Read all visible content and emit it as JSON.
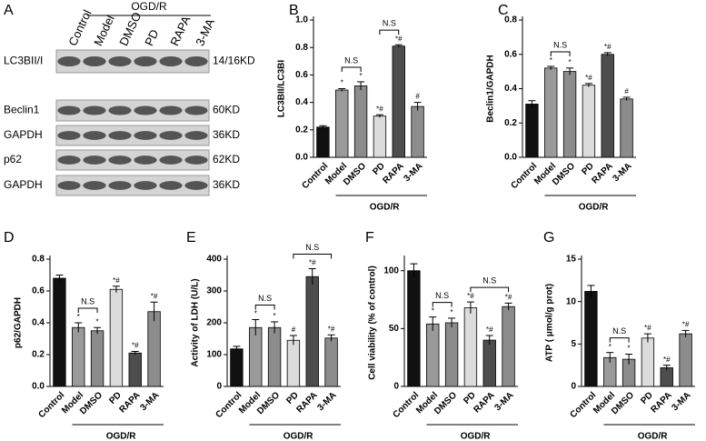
{
  "blot": {
    "panel": "A",
    "group": "OGD/R",
    "lanes": [
      "Control",
      "Model",
      "DMSO",
      "PD",
      "RAPA",
      "3-MA"
    ],
    "rows": [
      {
        "label": "LC3BII/I",
        "size": "14/16KD"
      },
      {
        "label": "Beclin1",
        "size": "60KD"
      },
      {
        "label": "GAPDH",
        "size": "36KD"
      },
      {
        "label": "p62",
        "size": "62KD"
      },
      {
        "label": "GAPDH",
        "size": "36KD"
      }
    ]
  },
  "chart_data": [
    {
      "type": "bar",
      "panel": "B",
      "y_label": "LC3BII/LC3BI",
      "group": "OGD/R",
      "categories": [
        "Control",
        "Model",
        "DMSO",
        "PD",
        "RAPA",
        "3-MA"
      ],
      "values": [
        0.22,
        0.49,
        0.52,
        0.3,
        0.81,
        0.37
      ],
      "errors": [
        0.01,
        0.01,
        0.03,
        0.01,
        0.01,
        0.03
      ],
      "markers": [
        null,
        "*",
        "*",
        "*#",
        "*#",
        "#"
      ],
      "colors": [
        "#111111",
        "#9a9a9a",
        "#8c8c8c",
        "#dcdcdc",
        "#4d4d4d",
        "#8c8c8c"
      ],
      "brackets": [
        {
          "between": [
            "Model",
            "DMSO"
          ],
          "label": "N.S"
        },
        {
          "between": [
            "PD",
            "RAPA"
          ],
          "label": "N.S"
        }
      ],
      "ylim": [
        0,
        1.0
      ],
      "yticks": [
        {
          "value": 0,
          "label": "0.0"
        },
        0.2,
        0.4,
        0.6,
        0.8,
        {
          "value": 1.0,
          "label": "1.0"
        }
      ]
    },
    {
      "type": "bar",
      "panel": "C",
      "y_label": "Beclin1/GAPDH",
      "group": "OGD/R",
      "categories": [
        "Control",
        "Model",
        "DMSO",
        "PD",
        "RAPA",
        "3-MA"
      ],
      "values": [
        0.31,
        0.52,
        0.5,
        0.42,
        0.6,
        0.34
      ],
      "errors": [
        0.02,
        0.01,
        0.02,
        0.01,
        0.01,
        0.01
      ],
      "markers": [
        null,
        "*",
        "*",
        "*#",
        "*#",
        "#"
      ],
      "colors": [
        "#111111",
        "#9a9a9a",
        "#8c8c8c",
        "#dcdcdc",
        "#4d4d4d",
        "#8c8c8c"
      ],
      "brackets": [
        {
          "between": [
            "Model",
            "DMSO"
          ],
          "label": "N.S"
        }
      ],
      "ylim": [
        0,
        0.8
      ],
      "yticks": [
        {
          "value": 0,
          "label": "0.0"
        },
        0.2,
        0.4,
        0.6,
        0.8
      ]
    },
    {
      "type": "bar",
      "panel": "D",
      "y_label": "p62/GAPDH",
      "group": "OGD/R",
      "categories": [
        "Control",
        "Model",
        "DMSO",
        "PD",
        "RAPA",
        "3-MA"
      ],
      "values": [
        0.68,
        0.37,
        0.35,
        0.61,
        0.21,
        0.47
      ],
      "errors": [
        0.02,
        0.03,
        0.02,
        0.02,
        0.01,
        0.06
      ],
      "markers": [
        null,
        "*",
        "*",
        "*#",
        "*#",
        "*#"
      ],
      "colors": [
        "#111111",
        "#9a9a9a",
        "#8c8c8c",
        "#dcdcdc",
        "#4d4d4d",
        "#8c8c8c"
      ],
      "brackets": [
        {
          "between": [
            "Model",
            "DMSO"
          ],
          "label": "N.S"
        }
      ],
      "ylim": [
        0,
        0.8
      ],
      "yticks": [
        {
          "value": 0,
          "label": "0.0"
        },
        0.2,
        0.4,
        0.6,
        0.8
      ]
    },
    {
      "type": "bar",
      "panel": "E",
      "y_label": "Activity of LDH (U/L)",
      "group": "OGD/R",
      "categories": [
        "Control",
        "Model",
        "DMSO",
        "PD",
        "RAPA",
        "3-MA"
      ],
      "values": [
        118,
        185,
        185,
        145,
        345,
        152
      ],
      "errors": [
        8,
        25,
        18,
        15,
        25,
        10
      ],
      "markers": [
        null,
        "*",
        "*",
        "#",
        "*#",
        "*#"
      ],
      "colors": [
        "#111111",
        "#9a9a9a",
        "#8c8c8c",
        "#dcdcdc",
        "#4d4d4d",
        "#8c8c8c"
      ],
      "brackets": [
        {
          "between": [
            "Model",
            "DMSO"
          ],
          "label": "N.S"
        },
        {
          "between": [
            "PD",
            "3-MA"
          ],
          "label": "N.S"
        }
      ],
      "ylim": [
        0,
        400
      ],
      "yticks": [
        0,
        100,
        200,
        300,
        400
      ]
    },
    {
      "type": "bar",
      "panel": "F",
      "y_label": "Cell viability (% of control)",
      "group": "OGD/R",
      "categories": [
        "Control",
        "Model",
        "DMSO",
        "PD",
        "RAPA",
        "3-MA"
      ],
      "values": [
        100,
        54,
        55,
        68,
        40,
        69
      ],
      "errors": [
        6,
        6,
        4,
        5,
        4,
        3
      ],
      "markers": [
        null,
        "*",
        "*",
        "*#",
        "*#",
        "*#"
      ],
      "colors": [
        "#111111",
        "#9a9a9a",
        "#8c8c8c",
        "#dcdcdc",
        "#4d4d4d",
        "#8c8c8c"
      ],
      "brackets": [
        {
          "between": [
            "Model",
            "DMSO"
          ],
          "label": "N.S"
        },
        {
          "between": [
            "PD",
            "3-MA"
          ],
          "label": "N.S"
        }
      ],
      "ylim": [
        0,
        110
      ],
      "yticks": [
        0,
        50,
        100
      ]
    },
    {
      "type": "bar",
      "panel": "G",
      "y_label": "ATP ( μmol/g prot)",
      "group": "OGD/R",
      "categories": [
        "Control",
        "Model",
        "DMSO",
        "PD",
        "RAPA",
        "3-MA"
      ],
      "values": [
        11.2,
        3.4,
        3.2,
        5.7,
        2.2,
        6.2
      ],
      "errors": [
        0.7,
        0.6,
        0.6,
        0.5,
        0.3,
        0.4
      ],
      "markers": [
        null,
        "*",
        "*",
        "*#",
        "*#",
        "*#"
      ],
      "colors": [
        "#111111",
        "#9a9a9a",
        "#8c8c8c",
        "#dcdcdc",
        "#4d4d4d",
        "#8c8c8c"
      ],
      "brackets": [
        {
          "between": [
            "Model",
            "DMSO"
          ],
          "label": "N.S"
        }
      ],
      "ylim": [
        0,
        15
      ],
      "yticks": [
        0,
        5,
        10,
        15
      ]
    }
  ]
}
